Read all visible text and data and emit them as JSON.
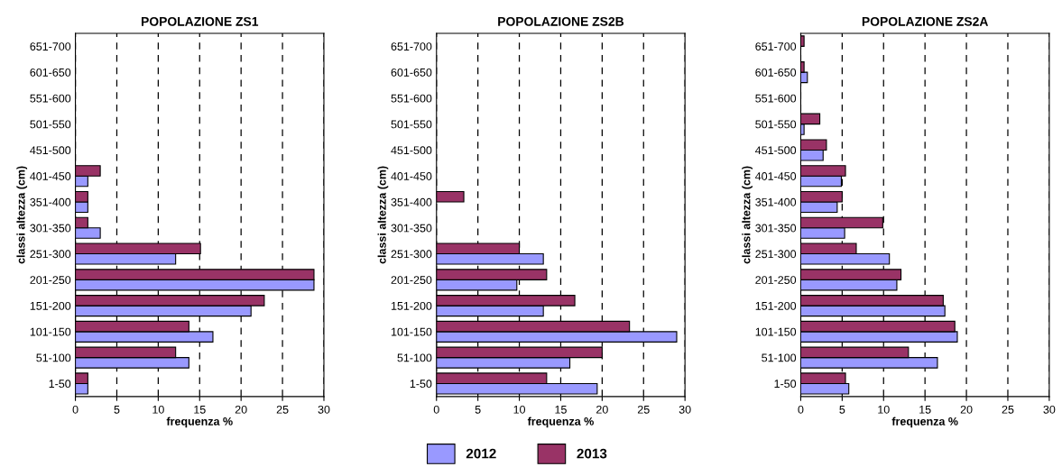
{
  "chart_data": [
    {
      "type": "bar",
      "orientation": "horizontal",
      "title": "POPOLAZIONE ZS1",
      "xlabel": "frequenza %",
      "ylabel": "classi altezza (cm)",
      "categories": [
        "651-700",
        "601-650",
        "551-600",
        "501-550",
        "451-500",
        "401-450",
        "351-400",
        "301-350",
        "251-300",
        "201-250",
        "151-200",
        "101-150",
        "51-100",
        "1-50"
      ],
      "xlim": [
        0,
        30
      ],
      "xticks": [
        0,
        5,
        10,
        15,
        20,
        25,
        30
      ],
      "grid": "x",
      "legend": "bottom",
      "series": [
        {
          "name": "2012",
          "color": "#9999ff",
          "values": [
            null,
            null,
            null,
            null,
            null,
            1.5,
            1.5,
            3.0,
            12.1,
            28.8,
            21.2,
            16.6,
            13.7,
            1.5
          ]
        },
        {
          "name": "2013",
          "color": "#993366",
          "values": [
            null,
            null,
            null,
            null,
            null,
            3.0,
            1.5,
            1.5,
            15.1,
            28.8,
            22.8,
            13.7,
            12.1,
            1.5
          ]
        }
      ]
    },
    {
      "type": "bar",
      "orientation": "horizontal",
      "title": "POPOLAZIONE ZS2B",
      "xlabel": "frequenza %",
      "ylabel": "classi altezza (cm)",
      "categories": [
        "651-700",
        "601-650",
        "551-600",
        "501-550",
        "451-500",
        "401-450",
        "351-400",
        "301-350",
        "251-300",
        "201-250",
        "151-200",
        "101-150",
        "51-100",
        "1-50"
      ],
      "xlim": [
        0,
        30
      ],
      "xticks": [
        0,
        5,
        10,
        15,
        20,
        25,
        30
      ],
      "grid": "x",
      "series": [
        {
          "name": "2012",
          "color": "#9999ff",
          "values": [
            null,
            null,
            null,
            null,
            null,
            null,
            null,
            null,
            12.9,
            9.7,
            12.9,
            29.0,
            16.1,
            19.4
          ]
        },
        {
          "name": "2013",
          "color": "#993366",
          "values": [
            null,
            null,
            null,
            null,
            null,
            null,
            3.3,
            null,
            10.0,
            13.3,
            16.7,
            23.3,
            20.0,
            13.3
          ]
        }
      ]
    },
    {
      "type": "bar",
      "orientation": "horizontal",
      "title": "POPOLAZIONE ZS2A",
      "xlabel": "frequenza %",
      "ylabel": "classi altezza (cm)",
      "categories": [
        "651-700",
        "601-650",
        "551-600",
        "501-550",
        "451-500",
        "401-450",
        "351-400",
        "301-350",
        "251-300",
        "201-250",
        "151-200",
        "101-150",
        "51-100",
        "1-50"
      ],
      "xlim": [
        0,
        30
      ],
      "xticks": [
        0,
        5,
        10,
        15,
        20,
        25,
        30
      ],
      "grid": "x",
      "series": [
        {
          "name": "2012",
          "color": "#9999ff",
          "values": [
            null,
            0.8,
            null,
            0.4,
            2.7,
            4.9,
            4.4,
            5.3,
            10.7,
            11.6,
            17.4,
            18.9,
            16.5,
            5.8
          ]
        },
        {
          "name": "2013",
          "color": "#993366",
          "values": [
            0.4,
            0.4,
            null,
            2.3,
            3.1,
            5.4,
            5.0,
            9.9,
            6.7,
            12.1,
            17.2,
            18.6,
            13.0,
            5.4
          ]
        }
      ]
    }
  ]
}
